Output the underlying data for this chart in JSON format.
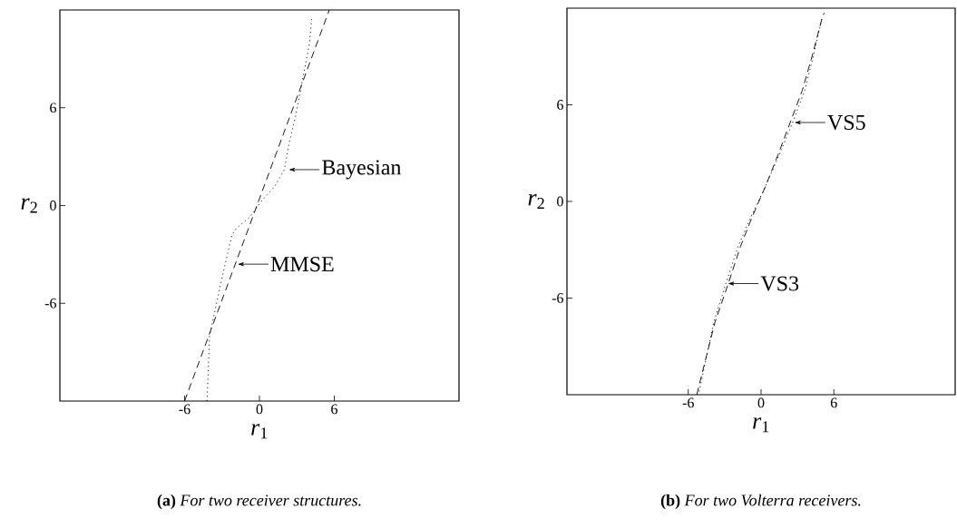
{
  "chart_data": [
    {
      "type": "line",
      "title": "**(a)** *For two receiver structures.*",
      "xlabel": "*r*$_{1}$",
      "ylabel": "*r*$_{2}$",
      "xlim": [
        -16,
        16
      ],
      "ylim": [
        -12,
        12
      ],
      "xticks": [
        -6,
        0,
        6
      ],
      "yticks": [
        -6,
        0,
        6
      ],
      "series": [
        {
          "color": "#000000",
          "line_style": "dashed",
          "x": [
            -6.0,
            5.6
          ],
          "values": [
            -12,
            12
          ]
        },
        {
          "color": "#000000",
          "line_style": "dotted",
          "x": [
            -4.2,
            -4.0,
            -2.9,
            -2.2,
            -1.85,
            -0.75,
            0.2,
            1.2,
            2.0,
            2.4,
            2.9,
            3.5,
            4.0,
            4.2
          ],
          "values": [
            -12,
            -8,
            -4.1,
            -1.8,
            -1.4,
            -0.7,
            0.3,
            1.15,
            2.2,
            3.9,
            5.5,
            7.9,
            9.9,
            11.5
          ]
        }
      ],
      "annotations": [
        {
          "text": "Bayesian",
          "x": 2.2,
          "y": 2.2
        },
        {
          "text": "MMSE",
          "x": -1.9,
          "y": -3.6
        }
      ]
    },
    {
      "type": "line",
      "title": "**(b)** *For two Volterra receivers.*",
      "xlabel": "*r*$_{1}$",
      "ylabel": "*r*$_{2}$",
      "xlim": [
        -16,
        16
      ],
      "ylim": [
        -12,
        12
      ],
      "xticks": [
        -6,
        0,
        6
      ],
      "yticks": [
        -6,
        0,
        6
      ],
      "series": [
        {
          "color": "#000000",
          "line_style": "dashed",
          "x": [
            -5.3,
            -3.8,
            -2.7,
            -1.7,
            -0.7,
            0.4,
            1.4,
            2.4,
            3.4,
            4.2,
            5.0,
            5.2
          ],
          "values": [
            -12,
            -7.5,
            -5.1,
            -2.8,
            -0.9,
            1.0,
            2.9,
            4.9,
            6.9,
            9.0,
            11.3,
            11.7
          ]
        },
        {
          "color": "#000000",
          "line_style": "dotted",
          "x": [
            -5.1,
            -3.9,
            -2.9,
            -1.9,
            -0.8,
            0.4,
            1.5,
            2.6,
            3.6,
            4.3,
            5.0,
            5.1
          ],
          "values": [
            -11.8,
            -7.5,
            -5.1,
            -2.8,
            -0.9,
            1.0,
            2.9,
            4.9,
            6.9,
            9.0,
            11.3,
            11.5
          ]
        }
      ],
      "annotations": [
        {
          "text": "VS5",
          "x": 2.6,
          "y": 4.9
        },
        {
          "text": "VS3",
          "x": -2.9,
          "y": -5.1
        }
      ]
    }
  ]
}
